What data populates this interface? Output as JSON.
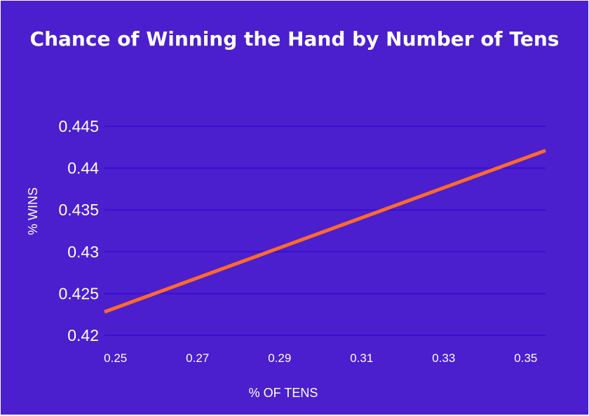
{
  "chart_data": {
    "type": "line",
    "title": "Chance of Winning the Hand by Number of Tens",
    "xlabel": "% OF TENS",
    "ylabel": "% WINS",
    "x_ticks": [
      "0.25",
      "0.27",
      "0.29",
      "0.31",
      "0.33",
      "0.35"
    ],
    "x_tick_values": [
      0.25,
      0.27,
      0.29,
      0.31,
      0.33,
      0.35
    ],
    "y_ticks": [
      "0.42",
      "0.425",
      "0.43",
      "0.435",
      "0.44",
      "0.445"
    ],
    "y_tick_values": [
      0.42,
      0.425,
      0.43,
      0.435,
      0.44,
      0.445
    ],
    "xlim": [
      0.248,
      0.3555
    ],
    "ylim": [
      0.42,
      0.445
    ],
    "grid": true,
    "legend": "none",
    "series": [
      {
        "x": [
          0.248,
          0.3555
        ],
        "y": [
          0.4228,
          0.4421
        ],
        "color": "#ff6a2b"
      }
    ],
    "colors": {
      "background": "#4b1fce",
      "grid": "#3a0fd0",
      "text": "#ffffff",
      "line": "#ff6a2b"
    }
  }
}
